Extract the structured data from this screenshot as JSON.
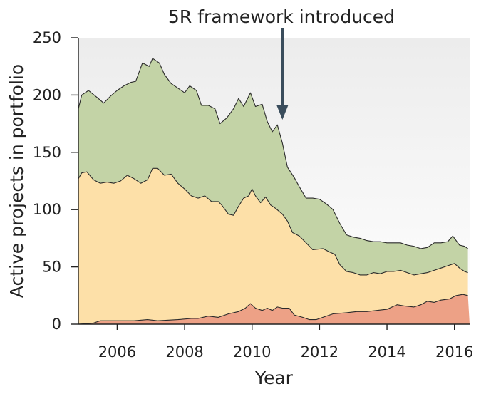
{
  "chart_data": {
    "type": "area",
    "stacked": true,
    "annotation": {
      "text": "5R framework introduced",
      "x": 2010.9
    },
    "xlabel": "Year",
    "ylabel": "Active projects in portfolio",
    "xlim": [
      2004.85,
      2016.45
    ],
    "ylim": [
      0,
      250
    ],
    "xticks": [
      2006,
      2008,
      2010,
      2012,
      2014,
      2016
    ],
    "yticks": [
      0,
      50,
      100,
      150,
      200,
      250
    ],
    "grid": false,
    "colors": {
      "background_gradient": [
        "#ffffff",
        "#ececec"
      ],
      "bottom_fill": "#eda186",
      "middle_fill": "#fde0a8",
      "top_fill": "#c3d3a6",
      "line": "#2b2b2b",
      "arrow": "#3a4d5c"
    },
    "layers": {
      "bottom": [
        [
          2004.85,
          0
        ],
        [
          2005.3,
          1
        ],
        [
          2005.5,
          3
        ],
        [
          2006.0,
          3
        ],
        [
          2006.5,
          3
        ],
        [
          2006.9,
          4
        ],
        [
          2007.2,
          3
        ],
        [
          2007.8,
          4
        ],
        [
          2008.2,
          5
        ],
        [
          2008.4,
          5
        ],
        [
          2008.7,
          7
        ],
        [
          2009.0,
          6
        ],
        [
          2009.3,
          9
        ],
        [
          2009.6,
          11
        ],
        [
          2009.8,
          14
        ],
        [
          2009.95,
          18
        ],
        [
          2010.1,
          14
        ],
        [
          2010.3,
          12
        ],
        [
          2010.45,
          14
        ],
        [
          2010.6,
          12
        ],
        [
          2010.75,
          15
        ],
        [
          2010.9,
          14
        ],
        [
          2011.1,
          14
        ],
        [
          2011.25,
          8
        ],
        [
          2011.5,
          6
        ],
        [
          2011.7,
          4
        ],
        [
          2011.9,
          4
        ],
        [
          2012.1,
          6
        ],
        [
          2012.4,
          9
        ],
        [
          2012.8,
          10
        ],
        [
          2013.1,
          11
        ],
        [
          2013.4,
          11
        ],
        [
          2013.7,
          12
        ],
        [
          2014.0,
          13
        ],
        [
          2014.3,
          17
        ],
        [
          2014.5,
          16
        ],
        [
          2014.8,
          15
        ],
        [
          2015.0,
          17
        ],
        [
          2015.2,
          20
        ],
        [
          2015.4,
          19
        ],
        [
          2015.6,
          21
        ],
        [
          2015.85,
          22
        ],
        [
          2016.05,
          25
        ],
        [
          2016.25,
          26
        ],
        [
          2016.4,
          25
        ]
      ],
      "middle": [
        [
          2004.85,
          127
        ],
        [
          2004.95,
          132
        ],
        [
          2005.1,
          133
        ],
        [
          2005.3,
          126
        ],
        [
          2005.5,
          123
        ],
        [
          2005.7,
          124
        ],
        [
          2005.9,
          123
        ],
        [
          2006.1,
          125
        ],
        [
          2006.3,
          130
        ],
        [
          2006.5,
          127
        ],
        [
          2006.7,
          123
        ],
        [
          2006.9,
          126
        ],
        [
          2007.05,
          136
        ],
        [
          2007.2,
          136
        ],
        [
          2007.4,
          130
        ],
        [
          2007.6,
          131
        ],
        [
          2007.8,
          123
        ],
        [
          2008.0,
          118
        ],
        [
          2008.2,
          112
        ],
        [
          2008.4,
          110
        ],
        [
          2008.6,
          112
        ],
        [
          2008.8,
          107
        ],
        [
          2009.0,
          107
        ],
        [
          2009.1,
          104
        ],
        [
          2009.3,
          96
        ],
        [
          2009.45,
          95
        ],
        [
          2009.6,
          103
        ],
        [
          2009.75,
          110
        ],
        [
          2009.9,
          112
        ],
        [
          2010.0,
          118
        ],
        [
          2010.1,
          112
        ],
        [
          2010.25,
          106
        ],
        [
          2010.4,
          111
        ],
        [
          2010.55,
          104
        ],
        [
          2010.7,
          101
        ],
        [
          2010.9,
          96
        ],
        [
          2011.05,
          90
        ],
        [
          2011.2,
          80
        ],
        [
          2011.4,
          77
        ],
        [
          2011.6,
          71
        ],
        [
          2011.8,
          65
        ],
        [
          2012.1,
          66
        ],
        [
          2012.3,
          63
        ],
        [
          2012.45,
          61
        ],
        [
          2012.6,
          52
        ],
        [
          2012.8,
          46
        ],
        [
          2013.0,
          45
        ],
        [
          2013.2,
          43
        ],
        [
          2013.4,
          43
        ],
        [
          2013.6,
          45
        ],
        [
          2013.8,
          44
        ],
        [
          2014.0,
          46
        ],
        [
          2014.2,
          46
        ],
        [
          2014.4,
          47
        ],
        [
          2014.6,
          45
        ],
        [
          2014.8,
          43
        ],
        [
          2015.0,
          44
        ],
        [
          2015.2,
          45
        ],
        [
          2015.4,
          47
        ],
        [
          2015.6,
          49
        ],
        [
          2015.8,
          51
        ],
        [
          2016.0,
          53
        ],
        [
          2016.15,
          49
        ],
        [
          2016.3,
          46
        ],
        [
          2016.4,
          45
        ]
      ],
      "total": [
        [
          2004.85,
          188
        ],
        [
          2004.95,
          200
        ],
        [
          2005.15,
          204
        ],
        [
          2005.4,
          198
        ],
        [
          2005.6,
          193
        ],
        [
          2005.8,
          199
        ],
        [
          2006.0,
          204
        ],
        [
          2006.2,
          208
        ],
        [
          2006.4,
          211
        ],
        [
          2006.55,
          212
        ],
        [
          2006.75,
          228
        ],
        [
          2006.95,
          225
        ],
        [
          2007.05,
          232
        ],
        [
          2007.25,
          228
        ],
        [
          2007.4,
          218
        ],
        [
          2007.6,
          210
        ],
        [
          2007.75,
          207
        ],
        [
          2008.0,
          202
        ],
        [
          2008.15,
          208
        ],
        [
          2008.35,
          204
        ],
        [
          2008.5,
          191
        ],
        [
          2008.7,
          191
        ],
        [
          2008.9,
          188
        ],
        [
          2009.05,
          175
        ],
        [
          2009.25,
          180
        ],
        [
          2009.45,
          188
        ],
        [
          2009.6,
          197
        ],
        [
          2009.75,
          190
        ],
        [
          2009.95,
          202
        ],
        [
          2010.1,
          190
        ],
        [
          2010.3,
          192
        ],
        [
          2010.45,
          177
        ],
        [
          2010.6,
          168
        ],
        [
          2010.75,
          174
        ],
        [
          2010.9,
          158
        ],
        [
          2011.05,
          137
        ],
        [
          2011.25,
          128
        ],
        [
          2011.4,
          120
        ],
        [
          2011.6,
          110
        ],
        [
          2011.8,
          110
        ],
        [
          2012.0,
          109
        ],
        [
          2012.2,
          105
        ],
        [
          2012.4,
          100
        ],
        [
          2012.6,
          88
        ],
        [
          2012.8,
          78
        ],
        [
          2013.0,
          76
        ],
        [
          2013.2,
          75
        ],
        [
          2013.4,
          73
        ],
        [
          2013.6,
          72
        ],
        [
          2013.8,
          72
        ],
        [
          2014.0,
          71
        ],
        [
          2014.2,
          71
        ],
        [
          2014.4,
          71
        ],
        [
          2014.6,
          69
        ],
        [
          2014.8,
          68
        ],
        [
          2015.0,
          66
        ],
        [
          2015.2,
          67
        ],
        [
          2015.4,
          71
        ],
        [
          2015.6,
          71
        ],
        [
          2015.8,
          72
        ],
        [
          2015.95,
          77
        ],
        [
          2016.15,
          69
        ],
        [
          2016.3,
          68
        ],
        [
          2016.4,
          66
        ]
      ]
    }
  }
}
